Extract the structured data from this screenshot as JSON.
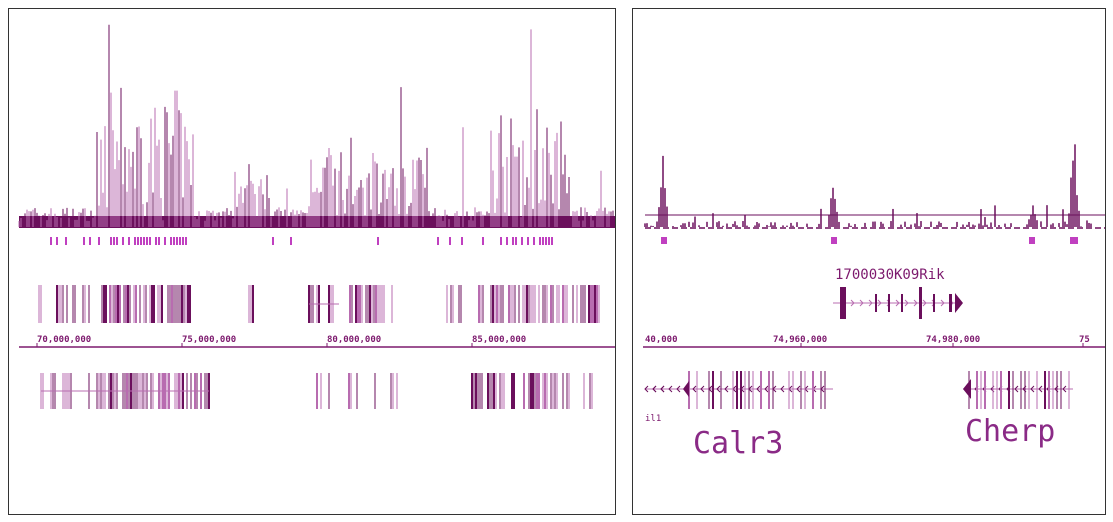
{
  "colors": {
    "track_dark": "#6b0f5c",
    "track_light": "#b86cb0",
    "peak": "#c040c0",
    "axis": "#7d1a6e",
    "label_big": "#8a2a86"
  },
  "left_panel": {
    "axis_ticks": [
      "70,000,000",
      "75,000,000",
      "80,000,000",
      "85,000,000"
    ]
  },
  "right_panel": {
    "axis_ticks": [
      "40,000",
      "74,960,000",
      "74,980,000",
      "75"
    ],
    "gene_top_label": "1700030K09Rik",
    "gene_partial_label": "il1",
    "gene_calr3": "Calr3",
    "gene_cherp": "Cherp"
  }
}
